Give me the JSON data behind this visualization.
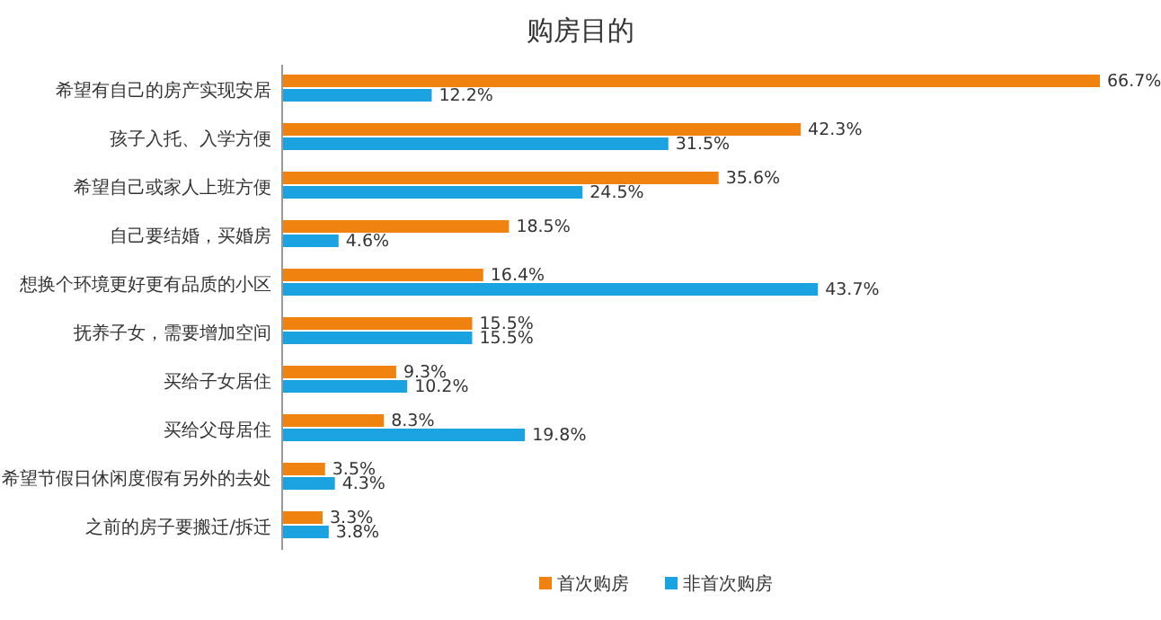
{
  "chart_data": {
    "type": "bar",
    "orientation": "horizontal",
    "title": "购房目的",
    "legend": "bottom right",
    "categories": [
      "希望有自己的房产实现安居",
      "孩子入托、入学方便",
      "希望自己或家人上班方便",
      "自己要结婚，买婚房",
      "想换个环境更好更有品质的小区",
      "抚养子女，需要增加空间",
      "买给子女居住",
      "买给父母居住",
      "希望节假日休闲度假有另外的去处",
      "之前的房子要搬迁/拆迁"
    ],
    "series": [
      {
        "name": "首次购房",
        "color": "#f0820f",
        "values": [
          66.7,
          42.3,
          35.6,
          18.5,
          16.4,
          15.5,
          9.3,
          8.3,
          3.5,
          3.3
        ],
        "value_labels": [
          "66.7%",
          "42.3%",
          "35.6%",
          "18.5%",
          "16.4%",
          "15.5%",
          "9.3%",
          "8.3%",
          "3.5%",
          "3.3%"
        ]
      },
      {
        "name": "非首次购房",
        "color": "#1aa3e0",
        "values": [
          12.2,
          31.5,
          24.5,
          4.6,
          43.7,
          15.5,
          10.2,
          19.8,
          4.3,
          3.8
        ],
        "value_labels": [
          "12.2%",
          "31.5%",
          "24.5%",
          "4.6%",
          "43.7%",
          "15.5%",
          "10.2%",
          "19.8%",
          "4.3%",
          "3.8%"
        ]
      }
    ]
  }
}
